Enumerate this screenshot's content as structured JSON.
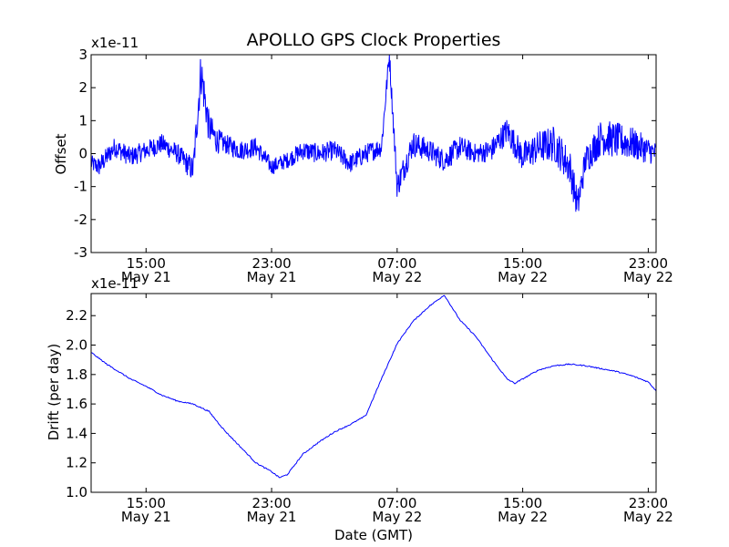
{
  "chart_data": [
    {
      "type": "line",
      "title": "APOLLO GPS Clock Properties",
      "ylabel": "Offset",
      "xlabel": "",
      "y_scale_label": "x1e-11",
      "ylim": [
        -3,
        3
      ],
      "xlim": [
        "May 21 11:30",
        "May 22 23:30"
      ],
      "yticks": [
        -3,
        -2,
        -1,
        0,
        1,
        2,
        3
      ],
      "xticks": [
        {
          "time": "May 21 15:00",
          "top": "15:00",
          "bottom": "May 21"
        },
        {
          "time": "May 21 23:00",
          "top": "23:00",
          "bottom": "May 21"
        },
        {
          "time": "May 22 07:00",
          "top": "07:00",
          "bottom": "May 22"
        },
        {
          "time": "May 22 15:00",
          "top": "15:00",
          "bottom": "May 22"
        },
        {
          "time": "May 22 23:00",
          "top": "23:00",
          "bottom": "May 22"
        }
      ],
      "grid": false,
      "series": [
        {
          "color": "#0000ff",
          "x": [
            "May 21 11:30",
            "May 21 12:00",
            "May 21 13:00",
            "May 21 14:00",
            "May 21 15:00",
            "May 21 16:00",
            "May 21 17:00",
            "May 21 18:00",
            "May 21 18:30",
            "May 21 19:00",
            "May 21 19:30",
            "May 21 20:00",
            "May 21 21:00",
            "May 21 22:00",
            "May 21 23:00",
            "May 22 00:00",
            "May 22 01:00",
            "May 22 02:00",
            "May 22 03:00",
            "May 22 04:00",
            "May 22 05:00",
            "May 22 06:00",
            "May 22 06:30",
            "May 22 07:00",
            "May 22 08:00",
            "May 22 09:00",
            "May 22 10:00",
            "May 22 11:00",
            "May 22 12:00",
            "May 22 13:00",
            "May 22 14:00",
            "May 22 15:00",
            "May 22 16:00",
            "May 22 17:00",
            "May 22 18:00",
            "May 22 18:30",
            "May 22 19:00",
            "May 22 20:00",
            "May 22 21:00",
            "May 22 22:00",
            "May 22 23:00",
            "May 22 23:30"
          ],
          "y": [
            -0.3,
            -0.4,
            0.2,
            -0.1,
            0.1,
            0.3,
            0.0,
            -0.5,
            2.5,
            0.8,
            0.4,
            0.3,
            0.1,
            0.2,
            -0.4,
            -0.2,
            0.1,
            0.0,
            0.1,
            -0.3,
            0.0,
            0.2,
            3.0,
            -1.0,
            0.3,
            0.1,
            -0.2,
            0.2,
            0.0,
            0.1,
            0.7,
            -0.1,
            0.2,
            0.3,
            -0.4,
            -1.6,
            -0.2,
            0.5,
            0.4,
            0.3,
            0.1,
            0.0
          ],
          "noise": [
            0.25,
            0.3,
            0.3,
            0.3,
            0.3,
            0.3,
            0.3,
            0.4,
            0.7,
            0.5,
            0.4,
            0.3,
            0.3,
            0.3,
            0.25,
            0.25,
            0.3,
            0.3,
            0.3,
            0.3,
            0.3,
            0.3,
            0.3,
            0.4,
            0.4,
            0.35,
            0.35,
            0.35,
            0.3,
            0.35,
            0.4,
            0.45,
            0.5,
            0.55,
            0.55,
            0.5,
            0.45,
            0.55,
            0.55,
            0.5,
            0.4,
            0.35
          ]
        }
      ]
    },
    {
      "type": "line",
      "title": "",
      "ylabel": "Drift (per day)",
      "xlabel": "Date (GMT)",
      "y_scale_label": "x1e-11",
      "ylim": [
        1.0,
        2.35
      ],
      "xlim": [
        "May 21 11:30",
        "May 22 23:30"
      ],
      "yticks": [
        1.0,
        1.2,
        1.4,
        1.6,
        1.8,
        2.0,
        2.2
      ],
      "ytick_labels": [
        "1.0",
        "1.2",
        "1.4",
        "1.6",
        "1.8",
        "2.0",
        "2.2"
      ],
      "xticks": [
        {
          "time": "May 21 15:00",
          "top": "15:00",
          "bottom": "May 21"
        },
        {
          "time": "May 21 23:00",
          "top": "23:00",
          "bottom": "May 21"
        },
        {
          "time": "May 22 07:00",
          "top": "07:00",
          "bottom": "May 22"
        },
        {
          "time": "May 22 15:00",
          "top": "15:00",
          "bottom": "May 22"
        },
        {
          "time": "May 22 23:00",
          "top": "23:00",
          "bottom": "May 22"
        }
      ],
      "grid": false,
      "series": [
        {
          "color": "#0000ff",
          "x": [
            "May 21 11:30",
            "May 21 12:30",
            "May 21 14:00",
            "May 21 15:00",
            "May 21 16:00",
            "May 21 17:00",
            "May 21 18:00",
            "May 21 19:00",
            "May 21 20:00",
            "May 21 21:00",
            "May 21 22:00",
            "May 21 23:00",
            "May 21 23:30",
            "May 22 00:00",
            "May 22 01:00",
            "May 22 02:00",
            "May 22 03:00",
            "May 22 04:00",
            "May 22 04:30",
            "May 22 05:00",
            "May 22 06:00",
            "May 22 07:00",
            "May 22 08:00",
            "May 22 09:00",
            "May 22 09:30",
            "May 22 10:00",
            "May 22 11:00",
            "May 22 12:00",
            "May 22 13:00",
            "May 22 14:00",
            "May 22 14:30",
            "May 22 15:00",
            "May 22 16:00",
            "May 22 17:00",
            "May 22 18:00",
            "May 22 19:00",
            "May 22 20:00",
            "May 22 21:00",
            "May 22 22:00",
            "May 22 23:00",
            "May 22 23:30"
          ],
          "y": [
            1.95,
            1.87,
            1.77,
            1.72,
            1.66,
            1.62,
            1.6,
            1.55,
            1.42,
            1.31,
            1.2,
            1.14,
            1.1,
            1.12,
            1.26,
            1.34,
            1.41,
            1.46,
            1.49,
            1.52,
            1.77,
            2.01,
            2.16,
            2.26,
            2.3,
            2.34,
            2.17,
            2.06,
            1.91,
            1.77,
            1.74,
            1.77,
            1.83,
            1.86,
            1.87,
            1.86,
            1.84,
            1.82,
            1.79,
            1.75,
            1.69
          ]
        }
      ]
    }
  ]
}
